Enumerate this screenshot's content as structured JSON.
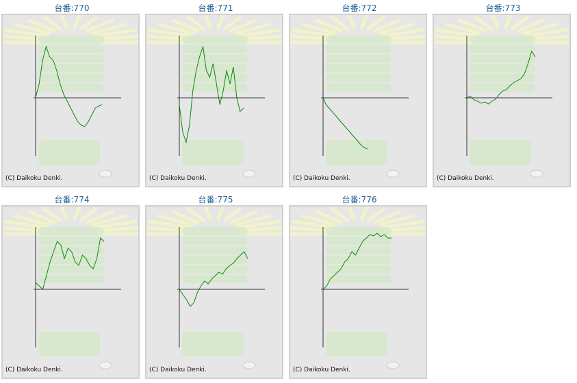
{
  "copyright": "(C) Daikoku Denki.",
  "colors": {
    "line": "#0a8a0a",
    "axis": "#333333",
    "panel_bg": "#e6e6e6",
    "title": "#1f5f95"
  },
  "chart_data": [
    {
      "type": "line",
      "title": "台番:770",
      "x": [
        0,
        1,
        2,
        3,
        4,
        5,
        6,
        7,
        8,
        9,
        10,
        11,
        12,
        13,
        14,
        15,
        16,
        17,
        18,
        19
      ],
      "values": [
        0,
        20,
        55,
        75,
        60,
        55,
        40,
        20,
        5,
        -5,
        -15,
        -25,
        -35,
        -40,
        -42,
        -35,
        -25,
        -15,
        -12,
        -10
      ]
    },
    {
      "type": "line",
      "title": "台番:771",
      "x": [
        0,
        1,
        2,
        3,
        4,
        5,
        6,
        7,
        8,
        9,
        10,
        11,
        12,
        13,
        14,
        15,
        16,
        17,
        18,
        19
      ],
      "values": [
        -10,
        -50,
        -65,
        -40,
        10,
        40,
        60,
        75,
        40,
        30,
        50,
        20,
        -10,
        10,
        40,
        20,
        45,
        0,
        -20,
        -15
      ]
    },
    {
      "type": "line",
      "title": "台番:772",
      "x": [
        0,
        1,
        2,
        3,
        4,
        5,
        6,
        7,
        8,
        9,
        10,
        11,
        12,
        13,
        14,
        15
      ],
      "values": [
        0,
        -10,
        -15,
        -20,
        -25,
        -30,
        -35,
        -40,
        -45,
        -50,
        -55,
        -60,
        -65,
        -70,
        -73,
        -75
      ]
    },
    {
      "type": "line",
      "title": "台番:773",
      "x": [
        0,
        1,
        2,
        3,
        4,
        5,
        6,
        7,
        8,
        9,
        10,
        11,
        12,
        13,
        14,
        15,
        16,
        17,
        18,
        19
      ],
      "values": [
        0,
        2,
        -3,
        -5,
        -8,
        -6,
        -9,
        -5,
        -2,
        5,
        10,
        12,
        18,
        22,
        25,
        28,
        35,
        50,
        68,
        60
      ]
    },
    {
      "type": "line",
      "title": "台番:774",
      "x": [
        0,
        1,
        2,
        3,
        4,
        5,
        6,
        7,
        8,
        9,
        10,
        11,
        12,
        13,
        14,
        15,
        16,
        17,
        18,
        19
      ],
      "values": [
        10,
        5,
        0,
        20,
        40,
        55,
        70,
        65,
        45,
        60,
        55,
        40,
        35,
        50,
        45,
        35,
        30,
        45,
        75,
        70
      ]
    },
    {
      "type": "line",
      "title": "台番:775",
      "x": [
        0,
        1,
        2,
        3,
        4,
        5,
        6,
        7,
        8,
        9,
        10,
        11,
        12,
        13,
        14,
        15,
        16,
        17,
        18,
        19
      ],
      "values": [
        0,
        -8,
        -15,
        -25,
        -20,
        -5,
        5,
        12,
        8,
        15,
        20,
        25,
        22,
        30,
        35,
        38,
        45,
        50,
        55,
        45
      ]
    },
    {
      "type": "line",
      "title": "台番:776",
      "x": [
        0,
        1,
        2,
        3,
        4,
        5,
        6,
        7,
        8,
        9,
        10,
        11,
        12,
        13,
        14,
        15,
        16,
        17,
        18,
        19
      ],
      "values": [
        0,
        5,
        15,
        20,
        25,
        30,
        40,
        45,
        55,
        50,
        60,
        70,
        75,
        80,
        78,
        82,
        77,
        80,
        75,
        75
      ]
    }
  ]
}
